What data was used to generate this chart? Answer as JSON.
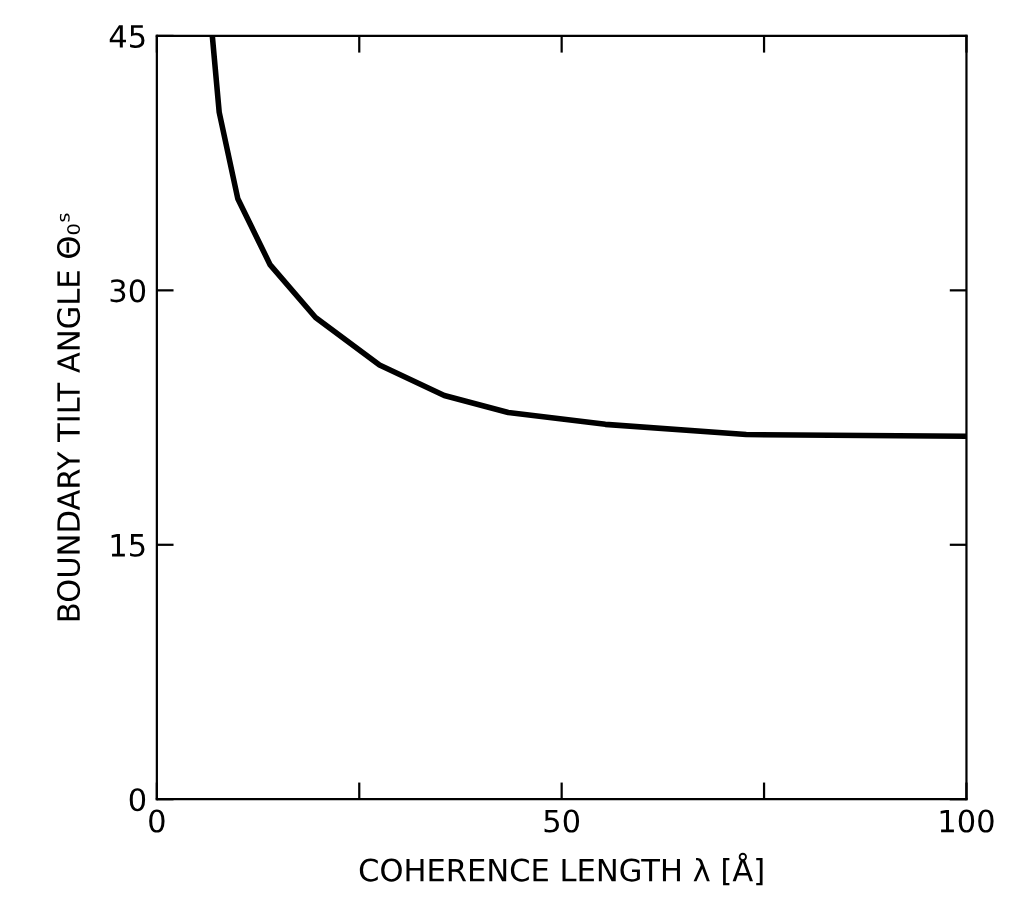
{
  "chart_data": {
    "type": "line",
    "xlabel": "COHERENCE LENGTH λ [Å]",
    "ylabel": "BOUNDARY TILT ANGLE Θ₀ˢ",
    "x": [
      6.85,
      7.7,
      10.0,
      14.0,
      19.6,
      27.5,
      35.5,
      43.4,
      55.4,
      72.8,
      100
    ],
    "series": [
      {
        "color": "#000000",
        "values": [
          45,
          40.5,
          35.4,
          31.5,
          28.4,
          25.6,
          23.8,
          22.8,
          22.1,
          21.5,
          21.4
        ]
      }
    ],
    "xlim": [
      0,
      100
    ],
    "ylim": [
      0,
      45
    ],
    "xticks": [
      0,
      {
        "value": 25,
        "label": null
      },
      50,
      {
        "value": 75,
        "label": null
      },
      100
    ],
    "yticks": [
      0,
      15,
      30,
      45
    ],
    "grid": false,
    "legend": false,
    "marker": "none",
    "line_style": "solid"
  }
}
